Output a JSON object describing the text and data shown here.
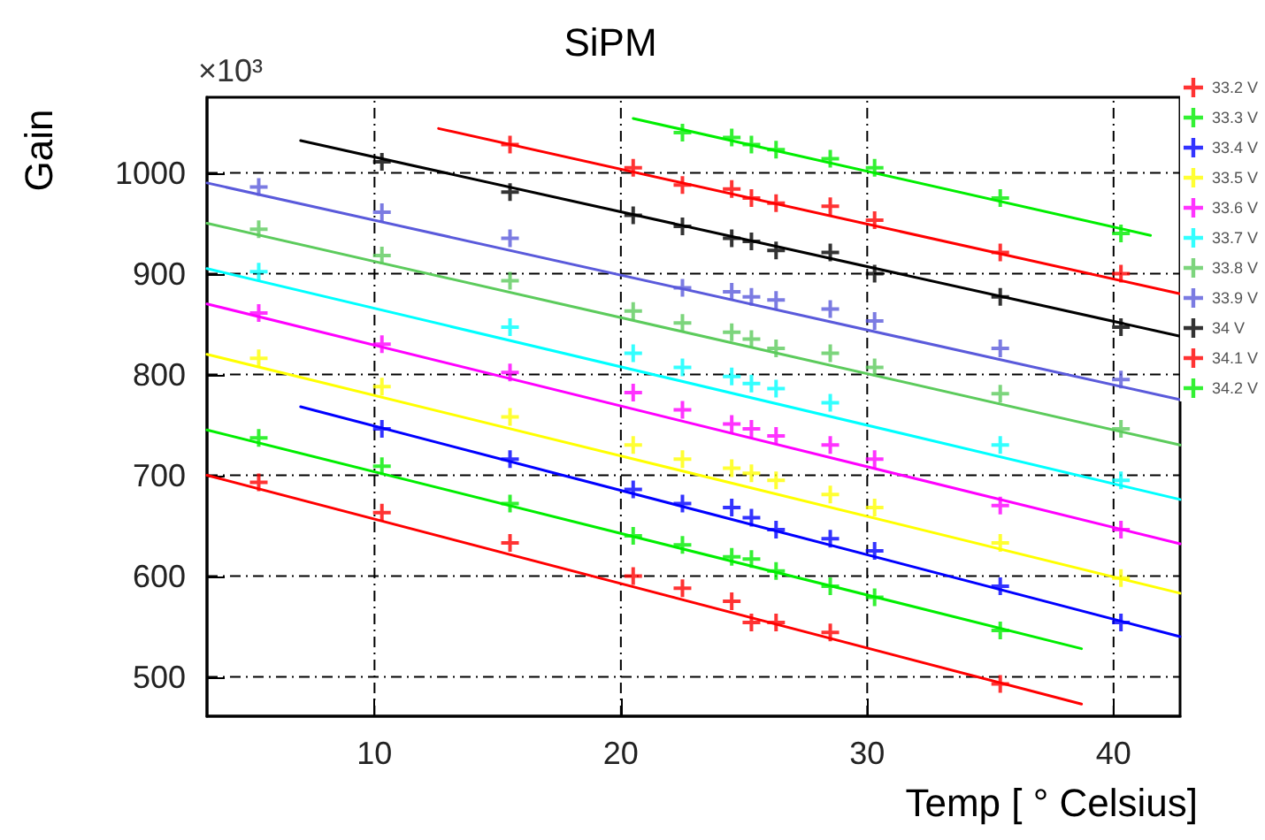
{
  "chart_data": {
    "type": "scatter",
    "title": "SiPM",
    "xlabel": "Temp [ ° Celsius]",
    "ylabel": "Gain",
    "annotations": [
      "×10³"
    ],
    "xlim": [
      3.2,
      42.7
    ],
    "xticks": [
      10,
      20,
      30,
      40
    ],
    "ylim": [
      461,
      1075
    ],
    "yticks": [
      500,
      600,
      700,
      800,
      900,
      1000
    ],
    "grid": true,
    "legend": "top right",
    "marker": "cross",
    "series": [
      {
        "name": "33.2 V",
        "color": "#ff0000",
        "x": [
          5.3,
          10.3,
          15.5,
          20.5,
          22.5,
          24.5,
          25.3,
          26.3,
          28.5,
          35.4
        ],
        "values": [
          693,
          663,
          633,
          600,
          588,
          575,
          554,
          554,
          544,
          493
        ]
      },
      {
        "name": "33.3 V",
        "color": "#00ee00",
        "x": [
          5.3,
          10.3,
          15.5,
          20.5,
          22.5,
          24.5,
          25.3,
          26.3,
          28.5,
          30.3,
          35.4
        ],
        "values": [
          737,
          709,
          672,
          640,
          631,
          619,
          617,
          605,
          590,
          579,
          546
        ]
      },
      {
        "name": "33.4 V",
        "color": "#0000ff",
        "x": [
          10.3,
          15.5,
          20.5,
          22.5,
          24.5,
          25.3,
          26.3,
          28.5,
          30.3,
          35.4,
          40.3
        ],
        "values": [
          746,
          716,
          686,
          672,
          668,
          658,
          646,
          637,
          625,
          590,
          554
        ]
      },
      {
        "name": "33.5 V",
        "color": "#ffff00",
        "x": [
          5.3,
          10.3,
          15.5,
          20.5,
          22.5,
          24.5,
          25.3,
          26.3,
          28.5,
          30.3,
          35.4,
          40.3
        ],
        "values": [
          816,
          788,
          758,
          730,
          716,
          707,
          702,
          695,
          681,
          668,
          633,
          598
        ]
      },
      {
        "name": "33.6 V",
        "color": "#ff00ff",
        "x": [
          5.3,
          10.3,
          15.5,
          20.5,
          22.5,
          24.5,
          25.3,
          26.3,
          28.5,
          30.3,
          35.4,
          40.3
        ],
        "values": [
          861,
          830,
          802,
          782,
          765,
          751,
          746,
          739,
          730,
          716,
          670,
          646
        ]
      },
      {
        "name": "33.7 V",
        "color": "#00ffff",
        "x": [
          5.3,
          15.5,
          20.5,
          22.5,
          24.5,
          25.3,
          26.3,
          28.5,
          35.4,
          40.3
        ],
        "values": [
          902,
          847,
          821,
          807,
          798,
          791,
          786,
          772,
          730,
          695
        ]
      },
      {
        "name": "33.8 V",
        "color": "#5ccb5c",
        "x": [
          5.3,
          10.3,
          15.5,
          20.5,
          22.5,
          24.5,
          25.3,
          26.3,
          28.5,
          30.3,
          35.4,
          40.3
        ],
        "values": [
          944,
          918,
          893,
          863,
          851,
          842,
          835,
          826,
          821,
          807,
          781,
          746
        ]
      },
      {
        "name": "33.9 V",
        "color": "#5a5adb",
        "x": [
          5.3,
          10.3,
          15.5,
          22.5,
          24.5,
          25.3,
          26.3,
          28.5,
          30.3,
          35.4,
          40.3
        ],
        "values": [
          986,
          961,
          935,
          886,
          882,
          877,
          874,
          865,
          853,
          826,
          795
        ]
      },
      {
        "name": "34 V",
        "color": "#000000",
        "x": [
          10.3,
          15.5,
          20.5,
          22.5,
          24.5,
          25.3,
          26.3,
          28.5,
          30.3,
          35.4,
          40.3
        ],
        "values": [
          1011,
          981,
          958,
          947,
          935,
          932,
          923,
          921,
          900,
          877,
          847
        ]
      },
      {
        "name": "34.1 V",
        "color": "#ff0000",
        "x": [
          15.5,
          20.5,
          22.5,
          24.5,
          25.3,
          26.3,
          28.5,
          30.3,
          35.4,
          40.3
        ],
        "values": [
          1028,
          1005,
          988,
          984,
          975,
          970,
          967,
          953,
          921,
          900
        ]
      },
      {
        "name": "34.2 V",
        "color": "#00ee00",
        "x": [
          22.5,
          24.5,
          25.3,
          26.3,
          28.5,
          30.3,
          35.4,
          40.3
        ],
        "values": [
          1040,
          1035,
          1028,
          1023,
          1014,
          1005,
          975,
          940
        ]
      },
      {
        "type": "line",
        "marker": "none",
        "color": "#ff0000",
        "x": [
          3.2,
          38.7
        ],
        "values": [
          700,
          473
        ]
      },
      {
        "type": "line",
        "marker": "none",
        "color": "#00ee00",
        "x": [
          3.2,
          38.7
        ],
        "values": [
          745,
          528
        ]
      },
      {
        "type": "line",
        "marker": "none",
        "color": "#0000ff",
        "x": [
          7.0,
          42.7
        ],
        "values": [
          768,
          540
        ]
      },
      {
        "type": "line",
        "marker": "none",
        "color": "#ffff00",
        "x": [
          3.2,
          42.7
        ],
        "values": [
          820,
          583
        ]
      },
      {
        "type": "line",
        "marker": "none",
        "color": "#ff00ff",
        "x": [
          3.2,
          42.7
        ],
        "values": [
          870,
          632
        ]
      },
      {
        "type": "line",
        "marker": "none",
        "color": "#00ffff",
        "x": [
          3.2,
          42.7
        ],
        "values": [
          905,
          676
        ]
      },
      {
        "type": "line",
        "marker": "none",
        "color": "#5ccb5c",
        "x": [
          3.2,
          42.7
        ],
        "values": [
          950,
          730
        ]
      },
      {
        "type": "line",
        "marker": "none",
        "color": "#5a5adb",
        "x": [
          3.2,
          42.7
        ],
        "values": [
          990,
          775
        ]
      },
      {
        "type": "line",
        "marker": "none",
        "color": "#000000",
        "x": [
          7.0,
          42.7
        ],
        "values": [
          1032,
          838
        ]
      },
      {
        "type": "line",
        "marker": "none",
        "color": "#ff0000",
        "x": [
          12.6,
          42.7
        ],
        "values": [
          1044,
          880
        ]
      },
      {
        "type": "line",
        "marker": "none",
        "color": "#00ee00",
        "x": [
          20.5,
          41.5
        ],
        "values": [
          1054,
          938
        ]
      }
    ]
  }
}
